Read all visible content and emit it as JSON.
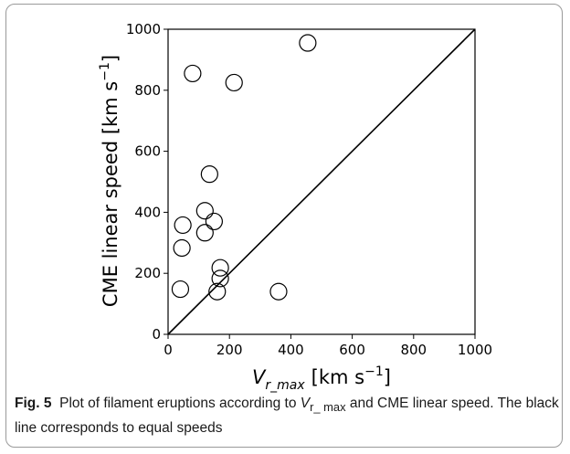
{
  "chart_data": {
    "type": "scatter",
    "xlabel": "V",
    "xlabel_sub": "r_max",
    "xlabel_unit": "[km s",
    "xlabel_exp": "−1",
    "xlabel_close": "]",
    "ylabel_text": "CME linear speed [km s",
    "ylabel_exp": "−1",
    "ylabel_close": "]",
    "xlim": [
      0,
      1000
    ],
    "ylim": [
      0,
      1000
    ],
    "xticks": [
      "0",
      "200",
      "400",
      "600",
      "800",
      "1000"
    ],
    "yticks": [
      "0",
      "200",
      "400",
      "600",
      "800",
      "1000"
    ],
    "grid": false,
    "reference_line": {
      "from": [
        0,
        0
      ],
      "to": [
        1000,
        1000
      ]
    },
    "points": [
      {
        "x": 455,
        "y": 955
      },
      {
        "x": 80,
        "y": 855
      },
      {
        "x": 215,
        "y": 825
      },
      {
        "x": 135,
        "y": 525
      },
      {
        "x": 120,
        "y": 405
      },
      {
        "x": 150,
        "y": 370
      },
      {
        "x": 48,
        "y": 358
      },
      {
        "x": 120,
        "y": 333
      },
      {
        "x": 45,
        "y": 283
      },
      {
        "x": 170,
        "y": 218
      },
      {
        "x": 170,
        "y": 183
      },
      {
        "x": 40,
        "y": 148
      },
      {
        "x": 160,
        "y": 140
      },
      {
        "x": 360,
        "y": 140
      }
    ]
  },
  "caption": {
    "label": "Fig. 5",
    "text_1": "Plot of filament eruptions according to",
    "var_main": "V",
    "var_sub": "r_ max",
    "text_2": "and CME linear speed. The black line corresponds to equal speeds"
  }
}
